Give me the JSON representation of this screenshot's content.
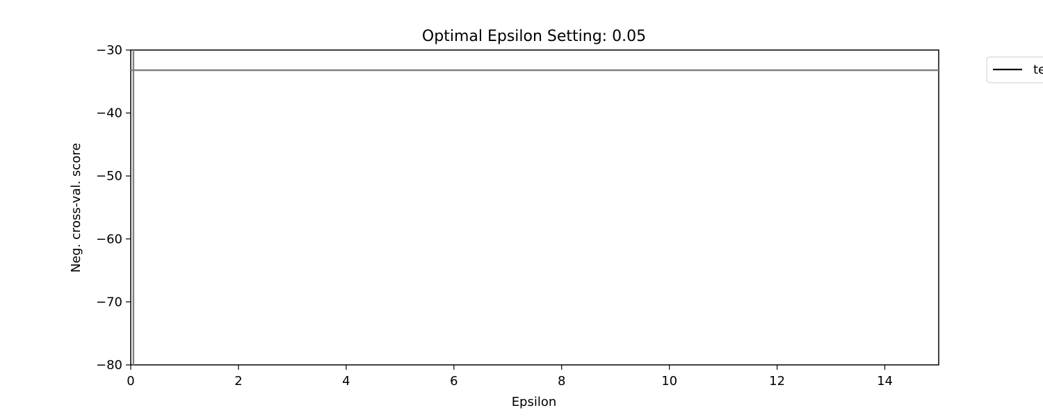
{
  "chart_data": {
    "type": "line",
    "title": "Optimal Epsilon Setting: 0.05",
    "xlabel": "Epsilon",
    "ylabel": "Neg. cross-val. score",
    "xlim": [
      0,
      15
    ],
    "ylim": [
      -80,
      -30
    ],
    "x_ticks": [
      0,
      2,
      4,
      6,
      8,
      10,
      12,
      14
    ],
    "y_ticks": [
      -30,
      -40,
      -50,
      -60,
      -70,
      -80
    ],
    "x_tick_labels": [
      "0",
      "2",
      "4",
      "6",
      "8",
      "10",
      "12",
      "14"
    ],
    "y_tick_labels": [
      "−30",
      "−40",
      "−50",
      "−60",
      "−70",
      "−80"
    ],
    "grid": false,
    "legend": {
      "placement": "outside-top-right",
      "entries": [
        {
          "label": "te",
          "color": "#000000"
        }
      ]
    },
    "series": [
      {
        "color": "#808080",
        "x": [
          0.0,
          15.0
        ],
        "y": [
          -33.2,
          -33.2
        ]
      }
    ],
    "vlines": [
      {
        "x": 0.05,
        "color": "#808080"
      }
    ]
  }
}
